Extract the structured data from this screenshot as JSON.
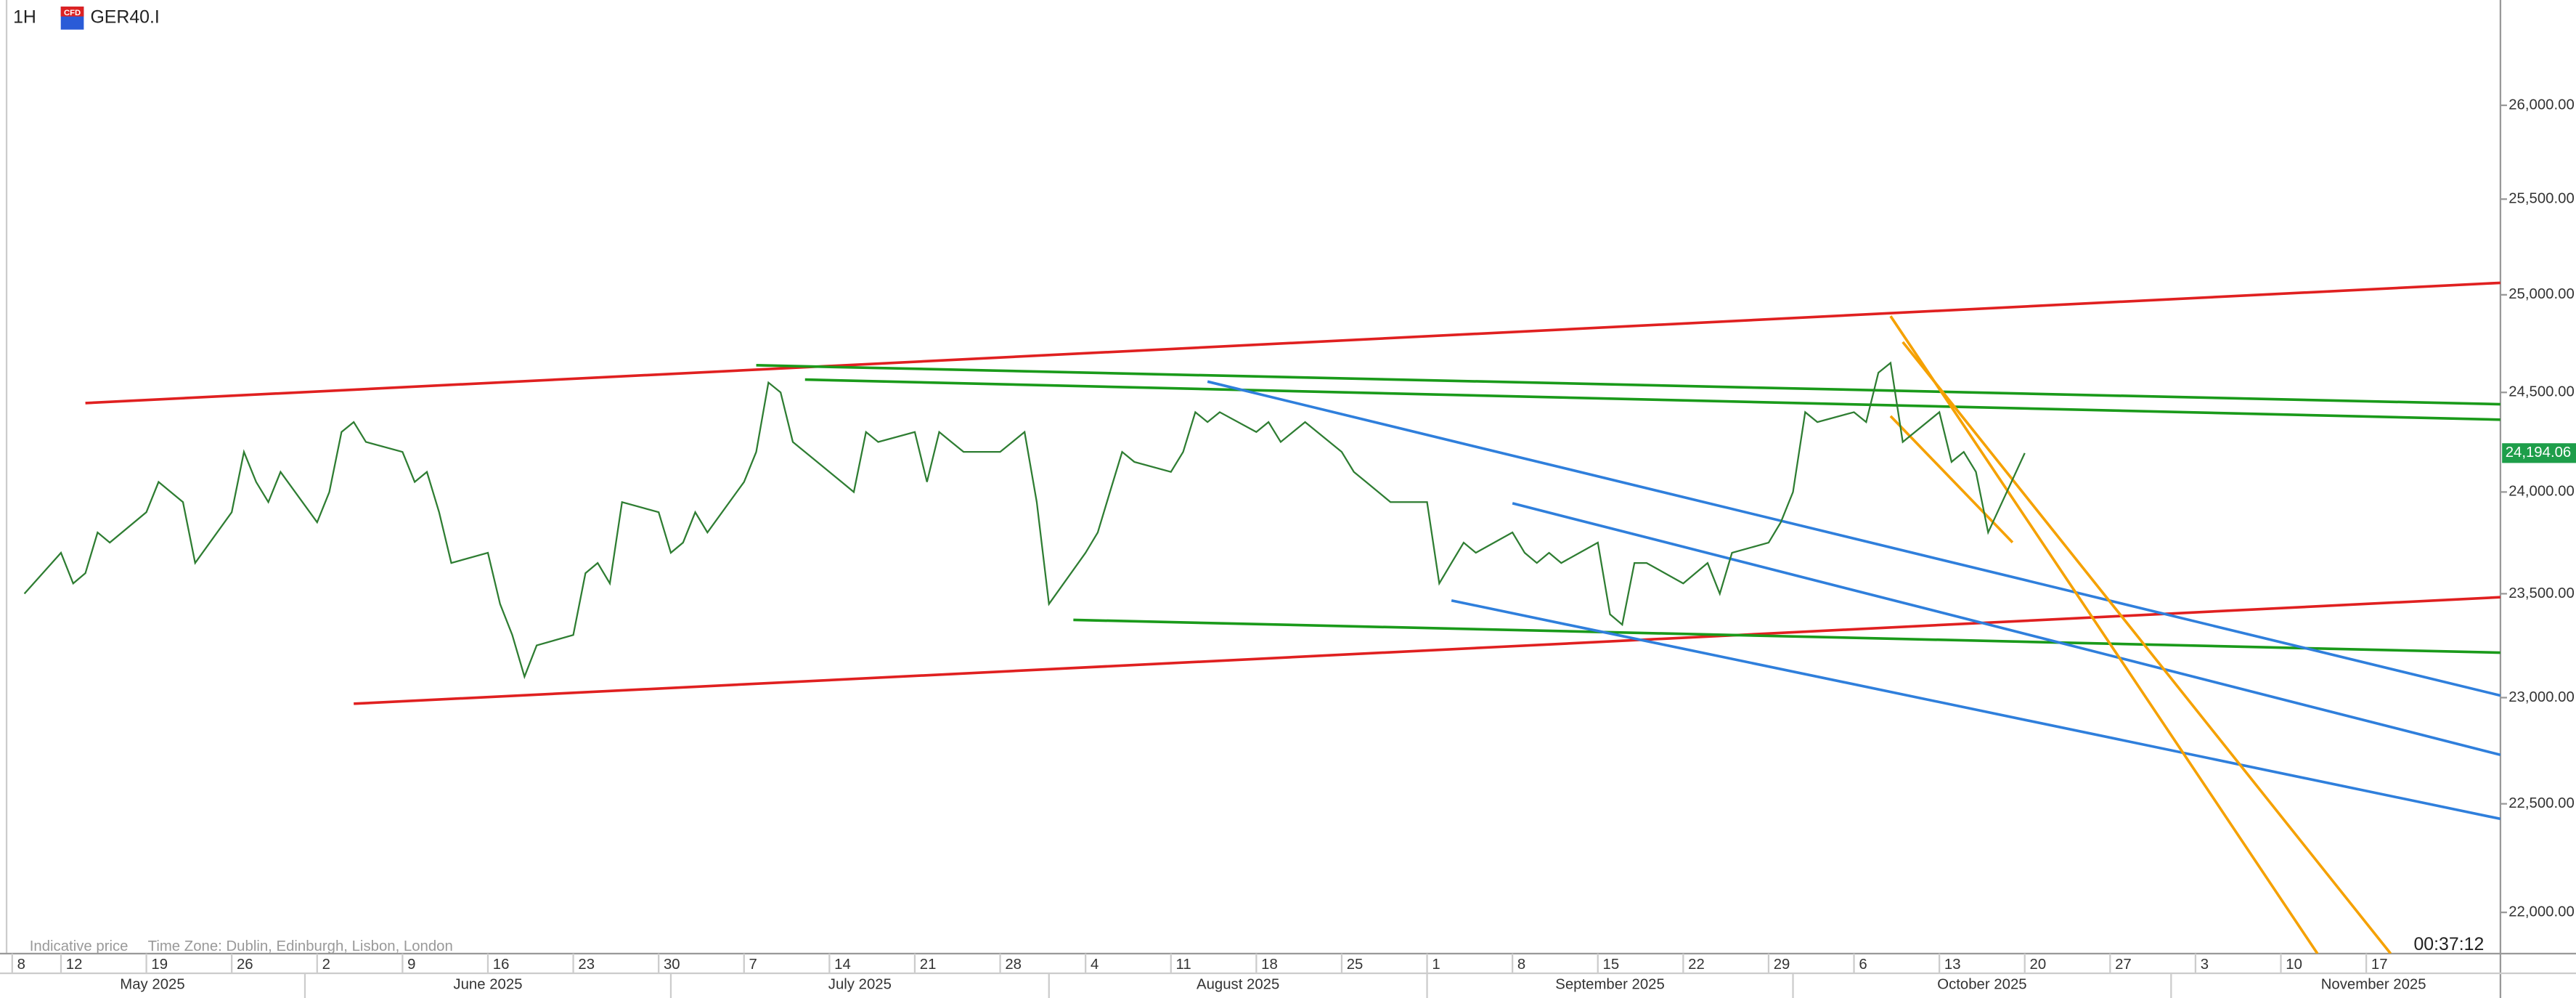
{
  "header": {
    "timeframe": "1H",
    "icon_label": "CFD",
    "symbol": "GER40.I"
  },
  "footer": {
    "note": "Indicative price",
    "timezone": "Time Zone: Dublin, Edinburgh, Lisbon, London",
    "countdown": "00:37:12"
  },
  "chart_data": {
    "type": "line",
    "log_scale": true,
    "grid": false,
    "color": "#2e7d32",
    "xlim": [
      "2025-05-07",
      "2025-11-28"
    ],
    "ylim": [
      21813,
      26573
    ],
    "yticks": [
      {
        "value": 22000,
        "label": "22,000.00"
      },
      {
        "value": 22500,
        "label": "22,500.00"
      },
      {
        "value": 23000,
        "label": "23,000.00"
      },
      {
        "value": 23500,
        "label": "23,500.00"
      },
      {
        "value": 24000,
        "label": "24,000.00"
      },
      {
        "value": 24500,
        "label": "24,500.00"
      },
      {
        "value": 25000,
        "label": "25,000.00"
      },
      {
        "value": 25500,
        "label": "25,500.00"
      },
      {
        "value": 26000,
        "label": "26,000.00"
      }
    ],
    "xticks": [
      {
        "value": "2025-05-08",
        "label": "8"
      },
      {
        "value": "2025-05-12",
        "label": "12"
      },
      {
        "value": "2025-05-19",
        "label": "19"
      },
      {
        "value": "2025-05-26",
        "label": "26"
      },
      {
        "value": "2025-06-02",
        "label": "2"
      },
      {
        "value": "2025-06-09",
        "label": "9"
      },
      {
        "value": "2025-06-16",
        "label": "16"
      },
      {
        "value": "2025-06-23",
        "label": "23"
      },
      {
        "value": "2025-06-30",
        "label": "30"
      },
      {
        "value": "2025-07-07",
        "label": "7"
      },
      {
        "value": "2025-07-14",
        "label": "14"
      },
      {
        "value": "2025-07-21",
        "label": "21"
      },
      {
        "value": "2025-07-28",
        "label": "28"
      },
      {
        "value": "2025-08-04",
        "label": "4"
      },
      {
        "value": "2025-08-11",
        "label": "11"
      },
      {
        "value": "2025-08-18",
        "label": "18"
      },
      {
        "value": "2025-08-25",
        "label": "25"
      },
      {
        "value": "2025-09-01",
        "label": "1"
      },
      {
        "value": "2025-09-08",
        "label": "8"
      },
      {
        "value": "2025-09-15",
        "label": "15"
      },
      {
        "value": "2025-09-22",
        "label": "22"
      },
      {
        "value": "2025-09-29",
        "label": "29"
      },
      {
        "value": "2025-10-06",
        "label": "6"
      },
      {
        "value": "2025-10-13",
        "label": "13"
      },
      {
        "value": "2025-10-20",
        "label": "20"
      },
      {
        "value": "2025-10-27",
        "label": "27"
      },
      {
        "value": "2025-11-03",
        "label": "3"
      },
      {
        "value": "2025-11-10",
        "label": "10"
      },
      {
        "value": "2025-11-17",
        "label": "17"
      }
    ],
    "months": [
      {
        "value": "2025-05-01",
        "label": "May 2025"
      },
      {
        "value": "2025-06-01",
        "label": "June 2025"
      },
      {
        "value": "2025-07-01",
        "label": "July 2025"
      },
      {
        "value": "2025-08-01",
        "label": "August 2025"
      },
      {
        "value": "2025-09-01",
        "label": "September 2025"
      },
      {
        "value": "2025-10-01",
        "label": "October 2025"
      },
      {
        "value": "2025-11-01",
        "label": "November 2025"
      }
    ],
    "x": [
      "2025-05-09",
      "2025-05-12",
      "2025-05-13",
      "2025-05-14",
      "2025-05-15",
      "2025-05-16",
      "2025-05-19",
      "2025-05-20",
      "2025-05-21",
      "2025-05-22",
      "2025-05-23",
      "2025-05-26",
      "2025-05-27",
      "2025-05-28",
      "2025-05-29",
      "2025-05-30",
      "2025-06-02",
      "2025-06-03",
      "2025-06-04",
      "2025-06-05",
      "2025-06-06",
      "2025-06-09",
      "2025-06-10",
      "2025-06-11",
      "2025-06-12",
      "2025-06-13",
      "2025-06-16",
      "2025-06-17",
      "2025-06-18",
      "2025-06-19",
      "2025-06-20",
      "2025-06-23",
      "2025-06-24",
      "2025-06-25",
      "2025-06-26",
      "2025-06-27",
      "2025-06-30",
      "2025-07-01",
      "2025-07-02",
      "2025-07-03",
      "2025-07-04",
      "2025-07-07",
      "2025-07-08",
      "2025-07-09",
      "2025-07-10",
      "2025-07-11",
      "2025-07-14",
      "2025-07-15",
      "2025-07-16",
      "2025-07-17",
      "2025-07-18",
      "2025-07-21",
      "2025-07-22",
      "2025-07-23",
      "2025-07-24",
      "2025-07-25",
      "2025-07-28",
      "2025-07-29",
      "2025-07-30",
      "2025-07-31",
      "2025-08-01",
      "2025-08-04",
      "2025-08-05",
      "2025-08-06",
      "2025-08-07",
      "2025-08-08",
      "2025-08-11",
      "2025-08-12",
      "2025-08-13",
      "2025-08-14",
      "2025-08-15",
      "2025-08-18",
      "2025-08-19",
      "2025-08-20",
      "2025-08-21",
      "2025-08-22",
      "2025-08-25",
      "2025-08-26",
      "2025-08-27",
      "2025-08-28",
      "2025-08-29",
      "2025-09-01",
      "2025-09-02",
      "2025-09-03",
      "2025-09-04",
      "2025-09-05",
      "2025-09-08",
      "2025-09-09",
      "2025-09-10",
      "2025-09-11",
      "2025-09-12",
      "2025-09-15",
      "2025-09-16",
      "2025-09-17",
      "2025-09-18",
      "2025-09-19",
      "2025-09-22",
      "2025-09-23",
      "2025-09-24",
      "2025-09-25",
      "2025-09-26",
      "2025-09-29",
      "2025-09-30",
      "2025-10-01",
      "2025-10-02",
      "2025-10-03",
      "2025-10-06",
      "2025-10-07",
      "2025-10-08",
      "2025-10-09",
      "2025-10-10",
      "2025-10-13",
      "2025-10-14",
      "2025-10-15",
      "2025-10-16",
      "2025-10-17",
      "2025-10-20"
    ],
    "values": [
      23500,
      23700,
      23550,
      23600,
      23800,
      23750,
      23900,
      24050,
      24000,
      23950,
      23650,
      23900,
      24200,
      24050,
      23950,
      24100,
      23850,
      24000,
      24300,
      24350,
      24250,
      24200,
      24050,
      24100,
      23900,
      23650,
      23700,
      23450,
      23300,
      23100,
      23250,
      23300,
      23600,
      23650,
      23550,
      23950,
      23900,
      23700,
      23750,
      23900,
      23800,
      24050,
      24200,
      24550,
      24500,
      24250,
      24100,
      24050,
      24000,
      24300,
      24250,
      24300,
      24050,
      24300,
      24250,
      24200,
      24200,
      24250,
      24300,
      23950,
      23450,
      23700,
      23800,
      24000,
      24200,
      24150,
      24100,
      24200,
      24400,
      24350,
      24400,
      24300,
      24350,
      24250,
      24300,
      24350,
      24200,
      24100,
      24050,
      24000,
      23950,
      23950,
      23550,
      23650,
      23750,
      23700,
      23800,
      23700,
      23650,
      23700,
      23650,
      23750,
      23400,
      23350,
      23650,
      23650,
      23550,
      23600,
      23650,
      23500,
      23700,
      23750,
      23850,
      24000,
      24400,
      24350,
      24400,
      24350,
      24600,
      24650,
      24250,
      24400,
      24150,
      24200,
      24100,
      23800,
      24194.06
    ],
    "last_price": {
      "value": 24194.06,
      "label": "24,194.06"
    },
    "last_price_color": "#1e9e4a",
    "drawings": [
      {
        "color": "#e02020",
        "x": [
          "2025-05-14",
          "2025-11-28"
        ],
        "values": [
          24446,
          25062
        ]
      },
      {
        "color": "#e02020",
        "x": [
          "2025-06-05",
          "2025-11-28"
        ],
        "values": [
          22971,
          23483
        ]
      },
      {
        "color": "#1a9a1a",
        "x": [
          "2025-07-08",
          "2025-11-28"
        ],
        "values": [
          24638,
          24440
        ]
      },
      {
        "color": "#1a9a1a",
        "x": [
          "2025-07-12",
          "2025-11-28"
        ],
        "values": [
          24565,
          24362
        ]
      },
      {
        "color": "#1a9a1a",
        "x": [
          "2025-08-03",
          "2025-11-28"
        ],
        "values": [
          23373,
          23215
        ]
      },
      {
        "color": "#2f7fdc",
        "x": [
          "2025-08-14",
          "2025-11-28"
        ],
        "values": [
          24555,
          23010
        ]
      },
      {
        "color": "#2f7fdc",
        "x": [
          "2025-09-08",
          "2025-11-28"
        ],
        "values": [
          23944,
          22729
        ]
      },
      {
        "color": "#2f7fdc",
        "x": [
          "2025-09-03",
          "2025-11-28"
        ],
        "values": [
          23467,
          22430
        ]
      },
      {
        "color": "#f5a100",
        "x": [
          "2025-10-09",
          "2025-11-13"
        ],
        "values": [
          24890,
          21813
        ]
      },
      {
        "color": "#f5a100",
        "x": [
          "2025-10-10",
          "2025-11-19"
        ],
        "values": [
          24757,
          21813
        ]
      },
      {
        "color": "#f5a100",
        "x": [
          "2025-10-09",
          "2025-10-19"
        ],
        "values": [
          24380,
          23751
        ]
      }
    ]
  }
}
